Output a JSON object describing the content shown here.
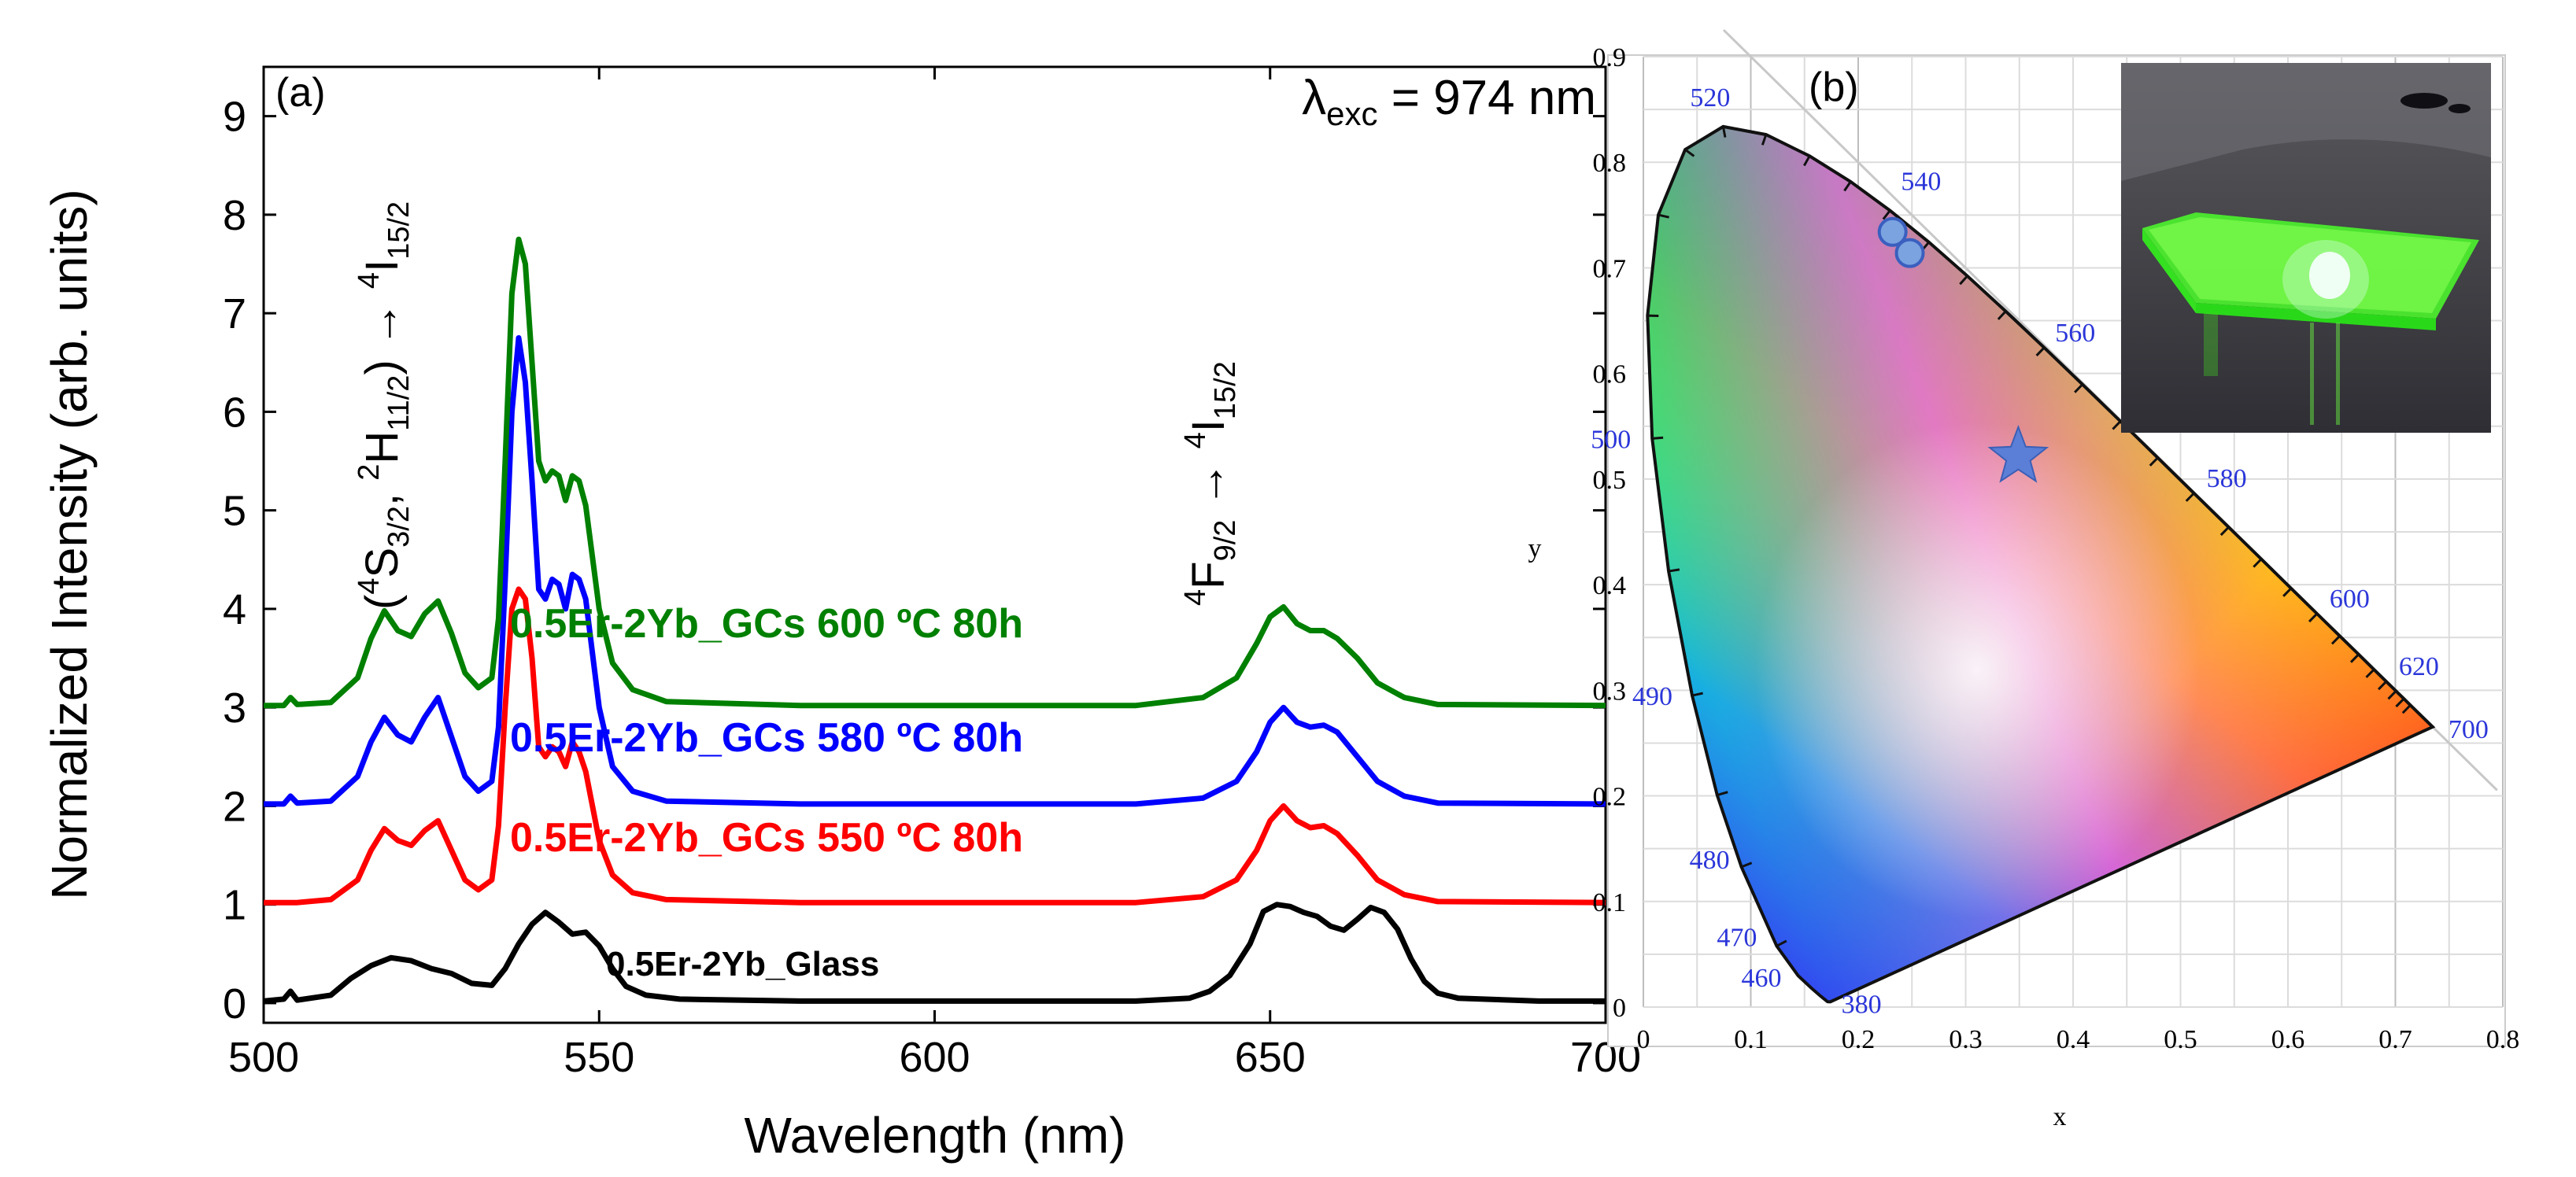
{
  "chart_data": [
    {
      "panel": "(a)",
      "type": "line",
      "xlabel": "Wavelength (nm)",
      "ylabel": "Normalized Intensity (arb. units)",
      "xlim": [
        500,
        700
      ],
      "ylim": [
        -0.2,
        9.5
      ],
      "xticks": [
        500,
        550,
        600,
        650,
        700
      ],
      "yticks": [
        0,
        1,
        2,
        3,
        4,
        5,
        6,
        7,
        8,
        9
      ],
      "excitation": {
        "lambda": "λ",
        "sub": "exc",
        "rest": " = 974 nm"
      },
      "annotations": {
        "green_band": {
          "p1": "(",
          "s1": "4",
          "t1": "S",
          "b1": "3/2",
          "t2": ", ",
          "s2": "2",
          "t3": "H",
          "b2": "11/2",
          "t4": ") → ",
          "s3": "4",
          "t5": "I",
          "b3": "15/2"
        },
        "red_band": {
          "s1": "4",
          "t1": "F",
          "b1": "9/2",
          "t2": " → ",
          "s2": "4",
          "t3": "I",
          "b2": "15/2"
        }
      },
      "series": [
        {
          "name": "0.5Er-2Yb_Glass",
          "color": "#000000",
          "offset": 0,
          "points": [
            [
              500,
              0.02
            ],
            [
              503,
              0.04
            ],
            [
              504,
              0.12
            ],
            [
              505,
              0.03
            ],
            [
              510,
              0.08
            ],
            [
              513,
              0.25
            ],
            [
              516,
              0.38
            ],
            [
              519,
              0.46
            ],
            [
              522,
              0.43
            ],
            [
              525,
              0.35
            ],
            [
              528,
              0.3
            ],
            [
              531,
              0.2
            ],
            [
              534,
              0.18
            ],
            [
              536,
              0.35
            ],
            [
              538,
              0.6
            ],
            [
              540,
              0.8
            ],
            [
              542,
              0.92
            ],
            [
              544,
              0.82
            ],
            [
              546,
              0.7
            ],
            [
              548,
              0.72
            ],
            [
              550,
              0.58
            ],
            [
              552,
              0.35
            ],
            [
              554,
              0.17
            ],
            [
              557,
              0.08
            ],
            [
              562,
              0.04
            ],
            [
              580,
              0.02
            ],
            [
              600,
              0.02
            ],
            [
              630,
              0.02
            ],
            [
              638,
              0.05
            ],
            [
              641,
              0.12
            ],
            [
              644,
              0.28
            ],
            [
              647,
              0.6
            ],
            [
              649,
              0.93
            ],
            [
              651,
              1.0
            ],
            [
              653,
              0.98
            ],
            [
              655,
              0.92
            ],
            [
              657,
              0.88
            ],
            [
              659,
              0.78
            ],
            [
              661,
              0.74
            ],
            [
              663,
              0.85
            ],
            [
              665,
              0.97
            ],
            [
              667,
              0.92
            ],
            [
              669,
              0.75
            ],
            [
              671,
              0.45
            ],
            [
              673,
              0.22
            ],
            [
              675,
              0.1
            ],
            [
              678,
              0.05
            ],
            [
              690,
              0.02
            ],
            [
              700,
              0.02
            ]
          ]
        },
        {
          "name": "0.5Er-2Yb_GCs 550 ºC 80h",
          "color": "#ff0000",
          "offset": 1,
          "points": [
            [
              500,
              0.02
            ],
            [
              505,
              0.02
            ],
            [
              510,
              0.05
            ],
            [
              514,
              0.25
            ],
            [
              516,
              0.55
            ],
            [
              518,
              0.77
            ],
            [
              520,
              0.65
            ],
            [
              522,
              0.6
            ],
            [
              524,
              0.75
            ],
            [
              526,
              0.85
            ],
            [
              528,
              0.55
            ],
            [
              530,
              0.25
            ],
            [
              532,
              0.15
            ],
            [
              534,
              0.25
            ],
            [
              535,
              0.8
            ],
            [
              536,
              2.0
            ],
            [
              537,
              3.0
            ],
            [
              538,
              3.2
            ],
            [
              539,
              3.1
            ],
            [
              540,
              2.5
            ],
            [
              541,
              1.6
            ],
            [
              542,
              1.5
            ],
            [
              543,
              1.6
            ],
            [
              544,
              1.55
            ],
            [
              545,
              1.4
            ],
            [
              546,
              1.65
            ],
            [
              547,
              1.55
            ],
            [
              548,
              1.35
            ],
            [
              550,
              0.65
            ],
            [
              552,
              0.3
            ],
            [
              555,
              0.12
            ],
            [
              560,
              0.05
            ],
            [
              580,
              0.02
            ],
            [
              630,
              0.02
            ],
            [
              640,
              0.08
            ],
            [
              645,
              0.25
            ],
            [
              648,
              0.55
            ],
            [
              650,
              0.85
            ],
            [
              652,
              1.0
            ],
            [
              654,
              0.85
            ],
            [
              656,
              0.78
            ],
            [
              658,
              0.8
            ],
            [
              660,
              0.72
            ],
            [
              663,
              0.5
            ],
            [
              666,
              0.25
            ],
            [
              670,
              0.1
            ],
            [
              675,
              0.03
            ],
            [
              700,
              0.02
            ]
          ]
        },
        {
          "name": "0.5Er-2Yb_GCs 580 ºC 80h",
          "color": "#0000ff",
          "offset": 2,
          "points": [
            [
              500,
              0.02
            ],
            [
              503,
              0.02
            ],
            [
              504,
              0.1
            ],
            [
              505,
              0.03
            ],
            [
              510,
              0.05
            ],
            [
              514,
              0.3
            ],
            [
              516,
              0.65
            ],
            [
              518,
              0.9
            ],
            [
              520,
              0.72
            ],
            [
              522,
              0.65
            ],
            [
              524,
              0.9
            ],
            [
              526,
              1.1
            ],
            [
              528,
              0.7
            ],
            [
              530,
              0.3
            ],
            [
              532,
              0.15
            ],
            [
              534,
              0.25
            ],
            [
              535,
              0.8
            ],
            [
              536,
              2.3
            ],
            [
              537,
              4.0
            ],
            [
              538,
              4.75
            ],
            [
              539,
              4.3
            ],
            [
              540,
              3.3
            ],
            [
              541,
              2.2
            ],
            [
              542,
              2.1
            ],
            [
              543,
              2.3
            ],
            [
              544,
              2.25
            ],
            [
              545,
              2.0
            ],
            [
              546,
              2.35
            ],
            [
              547,
              2.3
            ],
            [
              548,
              2.1
            ],
            [
              550,
              1.0
            ],
            [
              552,
              0.4
            ],
            [
              555,
              0.15
            ],
            [
              560,
              0.05
            ],
            [
              580,
              0.02
            ],
            [
              630,
              0.02
            ],
            [
              640,
              0.08
            ],
            [
              645,
              0.25
            ],
            [
              648,
              0.55
            ],
            [
              650,
              0.85
            ],
            [
              652,
              1.0
            ],
            [
              654,
              0.85
            ],
            [
              656,
              0.8
            ],
            [
              658,
              0.82
            ],
            [
              660,
              0.75
            ],
            [
              663,
              0.5
            ],
            [
              666,
              0.25
            ],
            [
              670,
              0.1
            ],
            [
              675,
              0.03
            ],
            [
              700,
              0.02
            ]
          ]
        },
        {
          "name": "0.5Er-2Yb_GCs 600 ºC 80h",
          "color": "#008000",
          "offset": 3,
          "points": [
            [
              500,
              0.02
            ],
            [
              503,
              0.02
            ],
            [
              504,
              0.1
            ],
            [
              505,
              0.03
            ],
            [
              510,
              0.05
            ],
            [
              514,
              0.3
            ],
            [
              516,
              0.7
            ],
            [
              518,
              0.98
            ],
            [
              520,
              0.78
            ],
            [
              522,
              0.72
            ],
            [
              524,
              0.95
            ],
            [
              526,
              1.08
            ],
            [
              528,
              0.75
            ],
            [
              530,
              0.35
            ],
            [
              532,
              0.2
            ],
            [
              534,
              0.3
            ],
            [
              535,
              0.9
            ],
            [
              536,
              2.5
            ],
            [
              537,
              4.2
            ],
            [
              538,
              4.75
            ],
            [
              539,
              4.5
            ],
            [
              540,
              3.5
            ],
            [
              541,
              2.5
            ],
            [
              542,
              2.3
            ],
            [
              543,
              2.4
            ],
            [
              544,
              2.35
            ],
            [
              545,
              2.1
            ],
            [
              546,
              2.35
            ],
            [
              547,
              2.3
            ],
            [
              548,
              2.05
            ],
            [
              550,
              1.0
            ],
            [
              552,
              0.45
            ],
            [
              555,
              0.18
            ],
            [
              560,
              0.06
            ],
            [
              580,
              0.02
            ],
            [
              630,
              0.02
            ],
            [
              640,
              0.1
            ],
            [
              645,
              0.3
            ],
            [
              648,
              0.65
            ],
            [
              650,
              0.92
            ],
            [
              652,
              1.02
            ],
            [
              654,
              0.85
            ],
            [
              656,
              0.78
            ],
            [
              658,
              0.78
            ],
            [
              660,
              0.7
            ],
            [
              663,
              0.5
            ],
            [
              666,
              0.25
            ],
            [
              670,
              0.1
            ],
            [
              675,
              0.03
            ],
            [
              700,
              0.02
            ]
          ]
        }
      ]
    },
    {
      "panel": "(b)",
      "type": "scatter",
      "xlabel": "x",
      "ylabel": "y",
      "xlim": [
        0,
        0.8
      ],
      "ylim": [
        0,
        0.9
      ],
      "xticks": [
        0,
        0.1,
        0.2,
        0.3,
        0.4,
        0.5,
        0.6,
        0.7,
        0.8
      ],
      "yticks": [
        0,
        0.1,
        0.2,
        0.3,
        0.4,
        0.5,
        0.6,
        0.7,
        0.8,
        0.9
      ],
      "locus_labels": [
        {
          "nm": "380",
          "x": 0.1741,
          "y": 0.005
        },
        {
          "nm": "460",
          "x": 0.144,
          "y": 0.0297
        },
        {
          "nm": "470",
          "x": 0.1241,
          "y": 0.0578
        },
        {
          "nm": "480",
          "x": 0.0913,
          "y": 0.1327
        },
        {
          "nm": "490",
          "x": 0.0454,
          "y": 0.295
        },
        {
          "nm": "500",
          "x": 0.0082,
          "y": 0.5384
        },
        {
          "nm": "520",
          "x": 0.0743,
          "y": 0.8338
        },
        {
          "nm": "540",
          "x": 0.2296,
          "y": 0.7543
        },
        {
          "nm": "560",
          "x": 0.3731,
          "y": 0.6245
        },
        {
          "nm": "580",
          "x": 0.5125,
          "y": 0.4866
        },
        {
          "nm": "600",
          "x": 0.627,
          "y": 0.3725
        },
        {
          "nm": "620",
          "x": 0.6915,
          "y": 0.3083
        },
        {
          "nm": "700",
          "x": 0.7347,
          "y": 0.2653
        }
      ],
      "locus": [
        [
          0.1741,
          0.005
        ],
        [
          0.1738,
          0.0049
        ],
        [
          0.1714,
          0.0051
        ],
        [
          0.1644,
          0.0109
        ],
        [
          0.1566,
          0.0177
        ],
        [
          0.144,
          0.0297
        ],
        [
          0.1241,
          0.0578
        ],
        [
          0.0913,
          0.1327
        ],
        [
          0.0687,
          0.2007
        ],
        [
          0.0454,
          0.295
        ],
        [
          0.0235,
          0.4127
        ],
        [
          0.0082,
          0.5384
        ],
        [
          0.0039,
          0.6548
        ],
        [
          0.0139,
          0.7502
        ],
        [
          0.0389,
          0.812
        ],
        [
          0.0743,
          0.8338
        ],
        [
          0.1142,
          0.8262
        ],
        [
          0.1547,
          0.8059
        ],
        [
          0.1929,
          0.7816
        ],
        [
          0.2296,
          0.7543
        ],
        [
          0.2658,
          0.7243
        ],
        [
          0.3016,
          0.6923
        ],
        [
          0.3373,
          0.6589
        ],
        [
          0.3731,
          0.6245
        ],
        [
          0.4087,
          0.5896
        ],
        [
          0.4441,
          0.5547
        ],
        [
          0.4788,
          0.5202
        ],
        [
          0.5125,
          0.4866
        ],
        [
          0.5448,
          0.4544
        ],
        [
          0.5752,
          0.4242
        ],
        [
          0.6029,
          0.3965
        ],
        [
          0.627,
          0.3725
        ],
        [
          0.6482,
          0.3514
        ],
        [
          0.6658,
          0.334
        ],
        [
          0.6801,
          0.3197
        ],
        [
          0.6915,
          0.3083
        ],
        [
          0.7006,
          0.2993
        ],
        [
          0.7079,
          0.292
        ],
        [
          0.714,
          0.2859
        ],
        [
          0.7347,
          0.2653
        ]
      ],
      "points": [
        {
          "name": "sample-point-1",
          "x": 0.232,
          "y": 0.734,
          "marker": "circle"
        },
        {
          "name": "sample-point-2",
          "x": 0.248,
          "y": 0.714,
          "marker": "circle"
        },
        {
          "name": "star-point",
          "x": 0.349,
          "y": 0.521,
          "marker": "star"
        }
      ]
    }
  ]
}
